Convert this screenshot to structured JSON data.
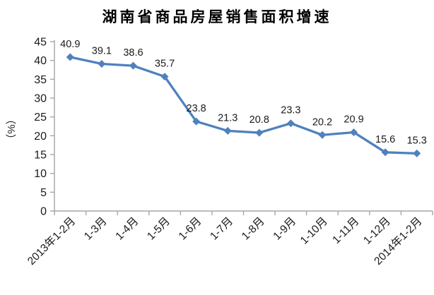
{
  "chart_data": {
    "type": "line",
    "title": "湖南省商品房屋销售面积增速",
    "ylabel": "（%）",
    "xlabel": "",
    "categories": [
      "2013年1-2月",
      "1-3月",
      "1-4月",
      "1-5月",
      "1-6月",
      "1-7月",
      "1-8月",
      "1-9月",
      "1-10月",
      "1-11月",
      "1-12月",
      "2014年1-2月"
    ],
    "values": [
      40.9,
      39.1,
      38.6,
      35.7,
      23.8,
      21.3,
      20.8,
      23.3,
      20.2,
      20.9,
      15.6,
      15.3
    ],
    "data_labels": [
      "40.9",
      "39.1",
      "38.6",
      "35.7",
      "23.8",
      "21.3",
      "20.8",
      "23.3",
      "20.2",
      "20.9",
      "15.6",
      "15.3"
    ],
    "ylim": [
      0,
      45
    ],
    "ytick_step": 5,
    "yticks": [
      45,
      40,
      35,
      30,
      25,
      20,
      15,
      10,
      5,
      0
    ],
    "grid": false,
    "legend": "none",
    "marker": "diamond",
    "colors": {
      "line": "#4F81BD",
      "marker": "#4F81BD",
      "axis": "#A6A6A6",
      "text": "#1a1a1a"
    }
  }
}
